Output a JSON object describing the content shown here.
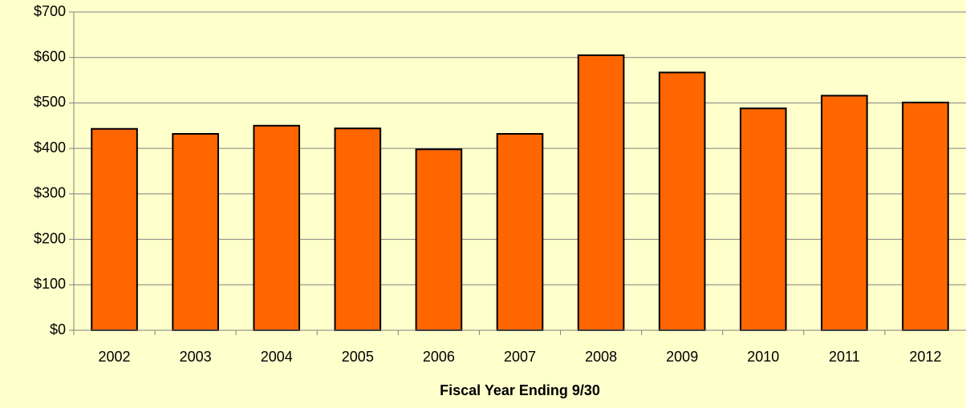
{
  "chart_data": {
    "type": "bar",
    "x_label": "Fiscal Year Ending 9/30",
    "categories": [
      "2002",
      "2003",
      "2004",
      "2005",
      "2006",
      "2007",
      "2008",
      "2009",
      "2010",
      "2011",
      "2012"
    ],
    "values": [
      443,
      432,
      450,
      444,
      398,
      432,
      605,
      567,
      488,
      516,
      501
    ],
    "color": "#ff6600",
    "ylim": [
      0,
      700
    ],
    "yticks": [
      {
        "value": 0,
        "label": "$0"
      },
      {
        "value": 100,
        "label": "$100"
      },
      {
        "value": 200,
        "label": "$200"
      },
      {
        "value": 300,
        "label": "$300"
      },
      {
        "value": 400,
        "label": "$400"
      },
      {
        "value": 500,
        "label": "$500"
      },
      {
        "value": 600,
        "label": "$600"
      },
      {
        "value": 700,
        "label": "$700"
      }
    ],
    "grid": true
  }
}
